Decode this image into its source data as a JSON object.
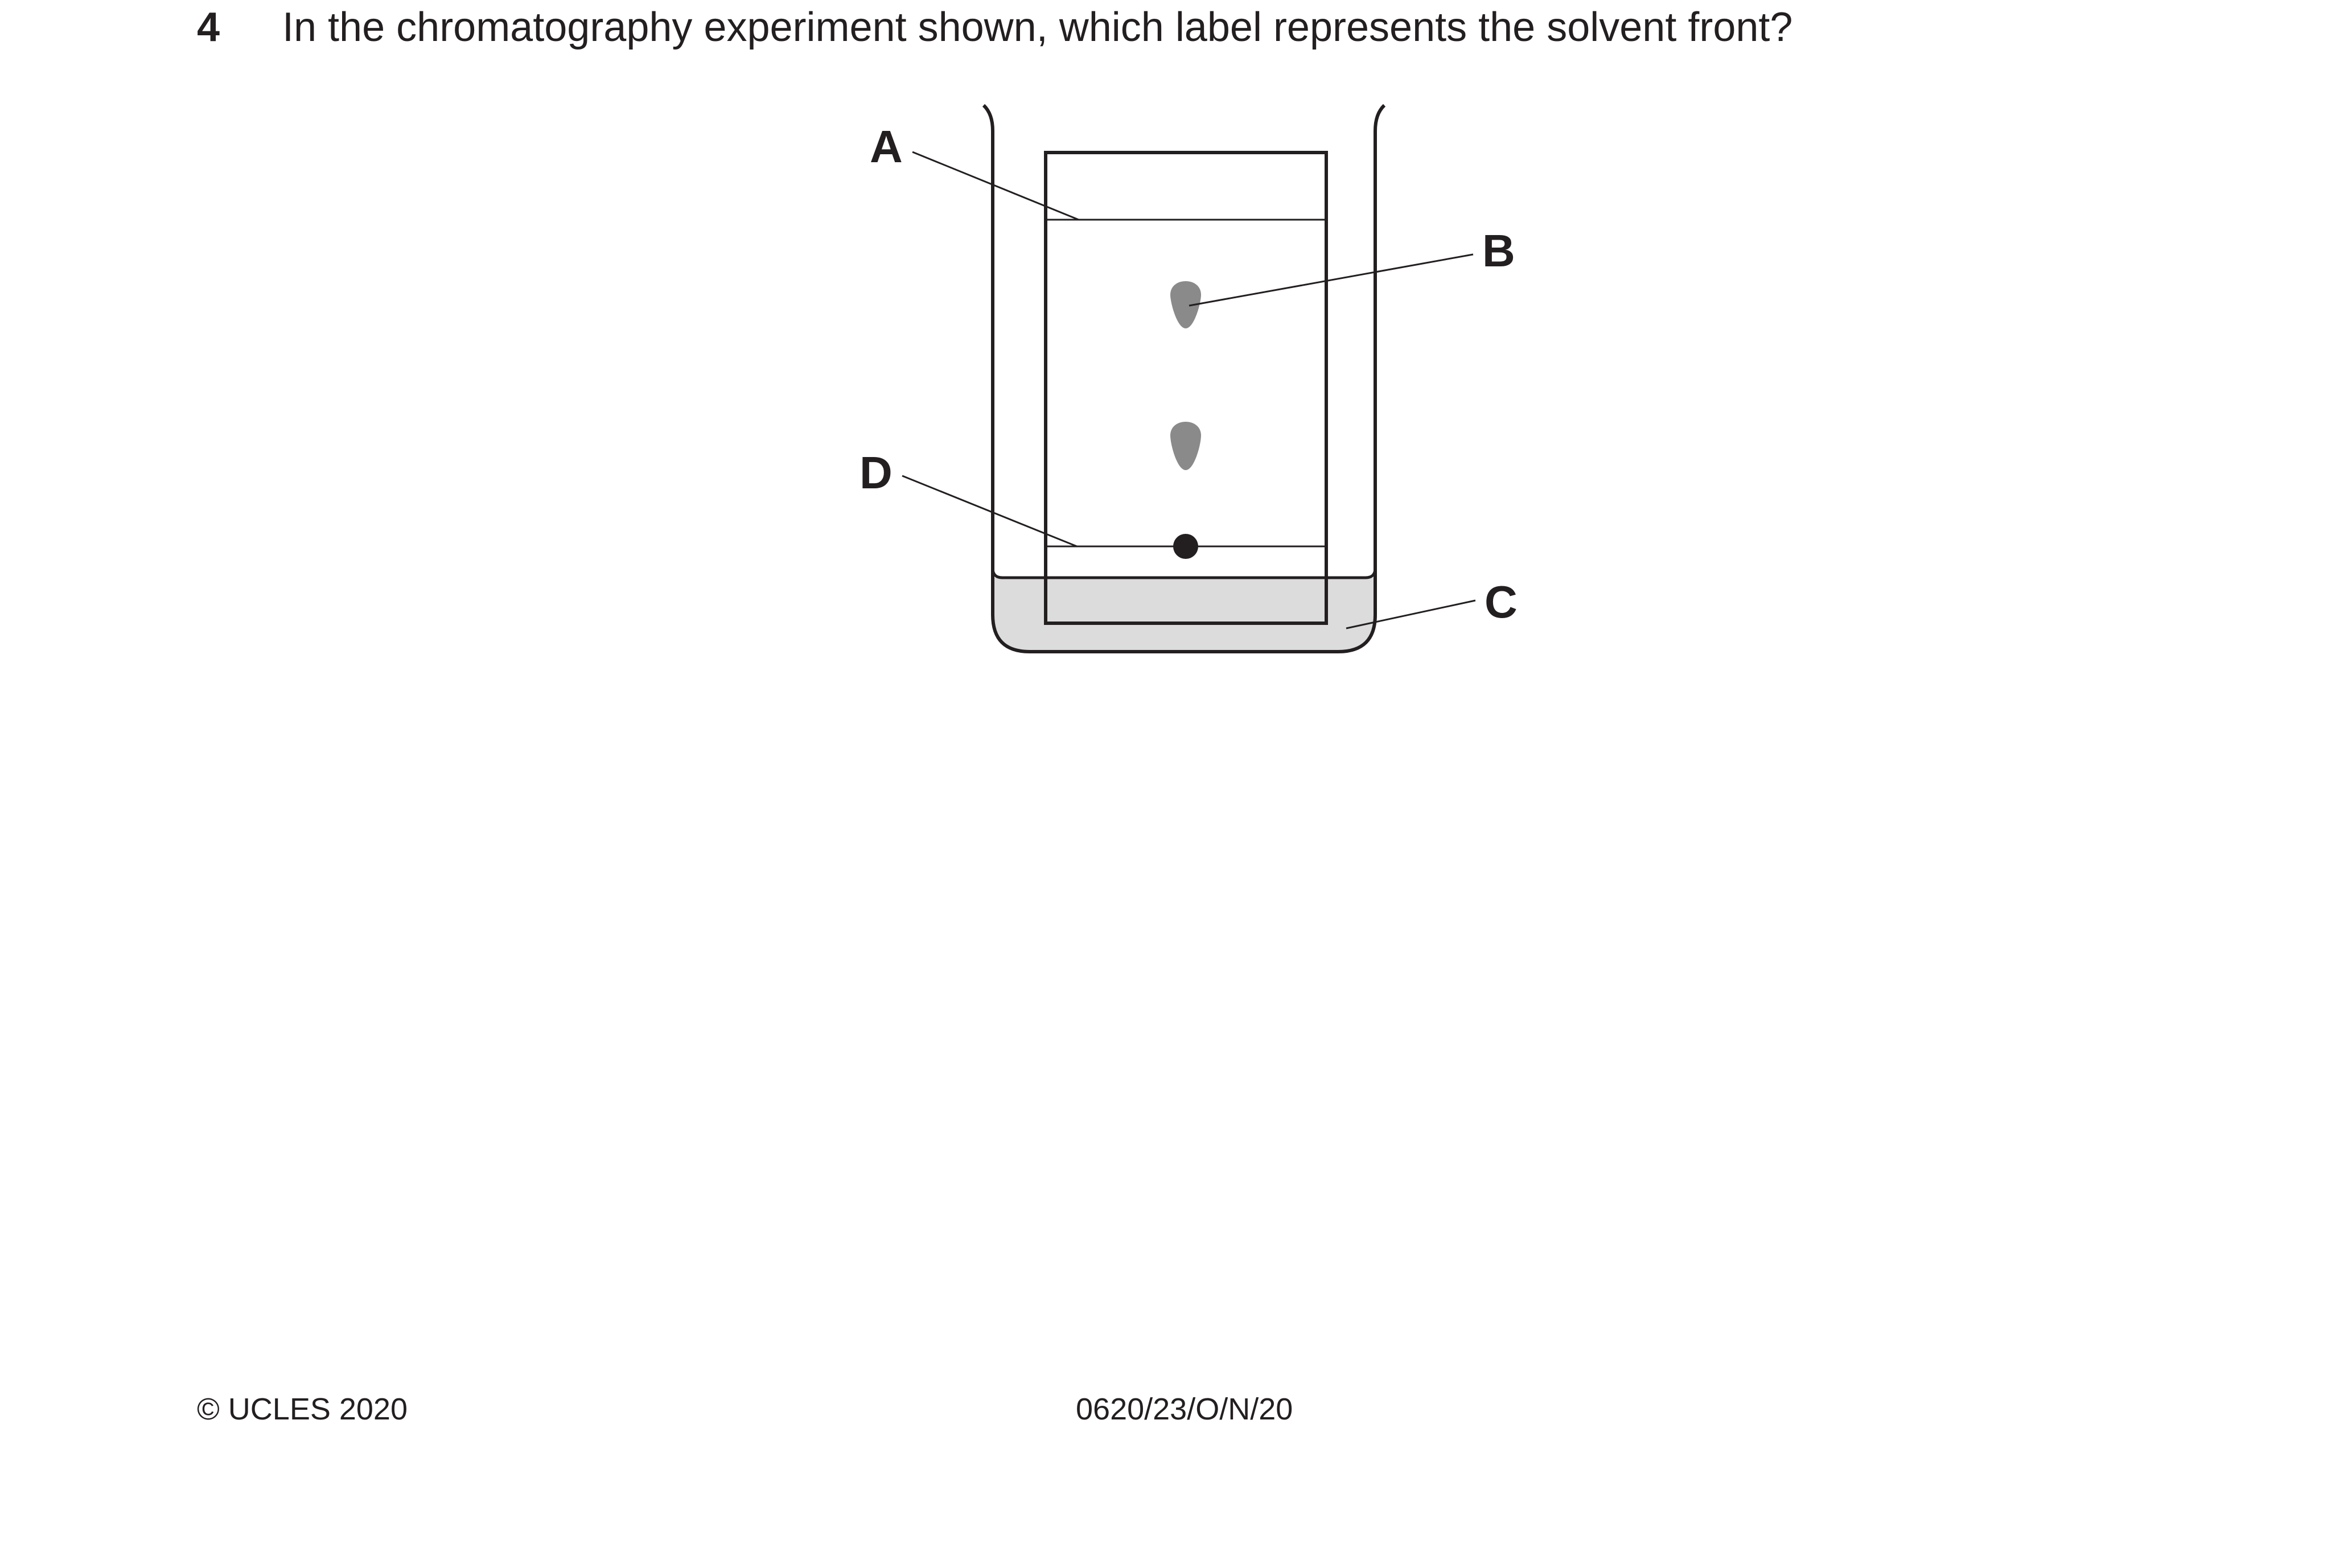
{
  "question": {
    "number": "4",
    "text": "In the chromatography experiment shown, which label represents the solvent front?"
  },
  "diagram": {
    "labels": {
      "a": "A",
      "b": "B",
      "c": "C",
      "d": "D"
    },
    "colors": {
      "ink": "#231f20",
      "solvent": "#dcdcdc",
      "spot": "#8a8a8a"
    }
  },
  "footer": {
    "copyright": "© UCLES 2020",
    "code": "0620/23/O/N/20"
  }
}
